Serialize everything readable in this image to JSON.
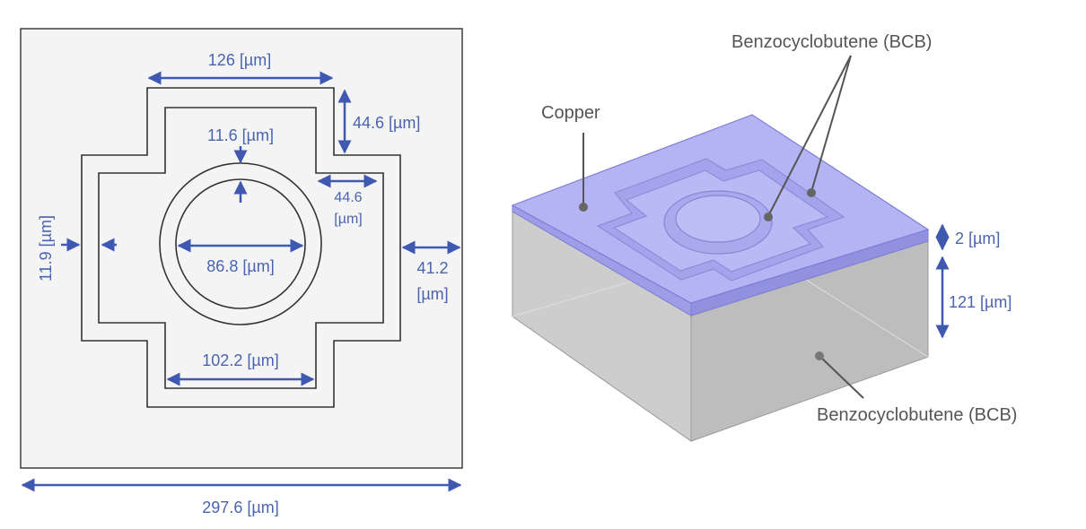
{
  "top_view": {
    "dims": {
      "cross_top_width": "126 [µm]",
      "cross_arm_height": "44.6 [µm]",
      "ring_gap": "11.6 [µm]",
      "side_arm_depth_line1": "44.6",
      "side_arm_depth_line2": "[µm]",
      "left_gap": "11.9 [µm]",
      "ring_inner_diameter": "86.8 [µm]",
      "right_margin_line1": "41.2",
      "right_margin_line2": "[µm]",
      "cross_bottom_width": "102.2 [µm]",
      "total_width": "297.6 [µm]"
    }
  },
  "iso_view": {
    "labels": {
      "copper": "Copper",
      "bcb_top": "Benzocyclobutene (BCB)",
      "bcb_bottom": "Benzocyclobutene (BCB)"
    },
    "dims": {
      "copper_thickness": "2 [µm]",
      "substrate_thickness": "121 [µm]"
    }
  },
  "colors": {
    "dimension": "#4a64b0",
    "copper": "#a9a9f2",
    "substrate": "#c8c8c8",
    "panel_bg": "#f4f4f4"
  }
}
